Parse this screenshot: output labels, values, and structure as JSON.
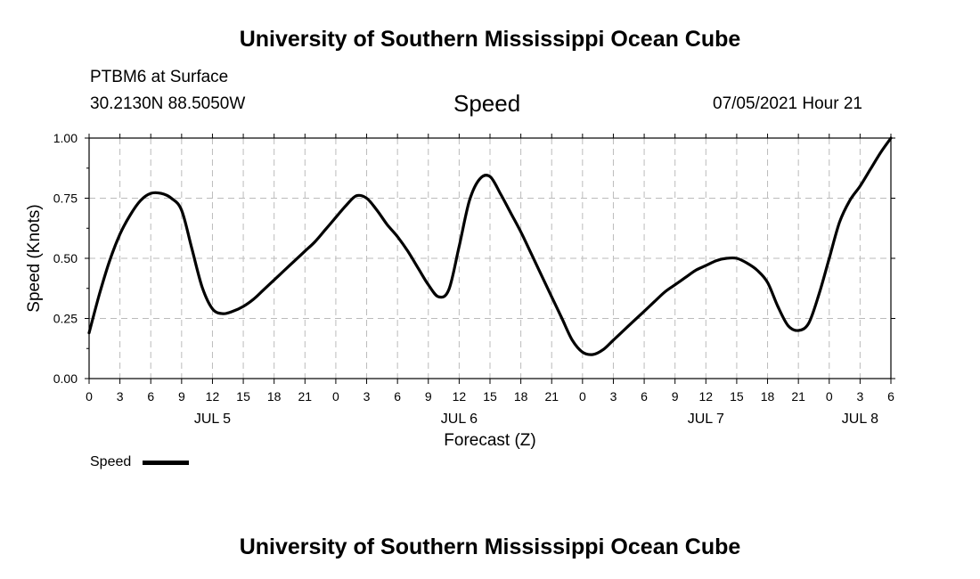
{
  "header": {
    "title": "University of Southern Mississippi Ocean Cube",
    "station": "PTBM6 at Surface",
    "coords": "30.2130N  88.5050W",
    "variable": "Speed",
    "datetime": "07/05/2021 Hour 21"
  },
  "footer": {
    "title": "University of Southern Mississippi Ocean Cube"
  },
  "legend": {
    "label": "Speed"
  },
  "chart_data": {
    "type": "line",
    "title": "Speed",
    "xlabel": "Forecast (Z)",
    "ylabel": "Speed (Knots)",
    "xunit": "hours since Jul 5 00Z",
    "xlim": [
      0,
      78
    ],
    "ylim": [
      0,
      1.0
    ],
    "yticks": [
      0,
      0.25,
      0.5,
      0.75,
      1.0
    ],
    "ytick_labels": [
      "0.00",
      "0.25",
      "0.50",
      "0.75",
      "1.00"
    ],
    "xticks": [
      0,
      3,
      6,
      9,
      12,
      15,
      18,
      21,
      24,
      27,
      30,
      33,
      36,
      39,
      42,
      45,
      48,
      51,
      54,
      57,
      60,
      63,
      66,
      69,
      72,
      75,
      78
    ],
    "xtick_labels": [
      "0",
      "3",
      "6",
      "9",
      "12",
      "15",
      "18",
      "21",
      "0",
      "3",
      "6",
      "9",
      "12",
      "15",
      "18",
      "21",
      "0",
      "3",
      "6",
      "9",
      "12",
      "15",
      "18",
      "21",
      "0",
      "3",
      "6"
    ],
    "date_labels": [
      {
        "x": 12,
        "label": "JUL 5"
      },
      {
        "x": 36,
        "label": "JUL 6"
      },
      {
        "x": 60,
        "label": "JUL 7"
      },
      {
        "x": 75,
        "label": "JUL 8"
      }
    ],
    "grid": true,
    "series": [
      {
        "name": "Speed",
        "color": "#000000",
        "x": [
          0,
          1,
          2,
          3,
          4,
          5,
          6,
          7,
          8,
          9,
          10,
          11,
          12,
          13,
          14,
          15,
          16,
          17,
          18,
          19,
          20,
          21,
          22,
          23,
          24,
          25,
          26,
          27,
          28,
          29,
          30,
          31,
          32,
          33,
          34,
          35,
          36,
          37,
          38,
          39,
          40,
          41,
          42,
          43,
          44,
          45,
          46,
          47,
          48,
          49,
          50,
          51,
          52,
          53,
          54,
          55,
          56,
          57,
          58,
          59,
          60,
          61,
          62,
          63,
          64,
          65,
          66,
          67,
          68,
          69,
          70,
          71,
          72,
          73,
          74,
          75,
          76,
          77,
          78
        ],
        "values": [
          0.19,
          0.35,
          0.49,
          0.6,
          0.68,
          0.74,
          0.77,
          0.77,
          0.75,
          0.7,
          0.54,
          0.38,
          0.29,
          0.27,
          0.28,
          0.3,
          0.33,
          0.37,
          0.41,
          0.45,
          0.49,
          0.53,
          0.57,
          0.62,
          0.67,
          0.72,
          0.76,
          0.75,
          0.7,
          0.64,
          0.59,
          0.53,
          0.46,
          0.39,
          0.34,
          0.37,
          0.55,
          0.74,
          0.83,
          0.84,
          0.77,
          0.69,
          0.61,
          0.52,
          0.43,
          0.34,
          0.25,
          0.16,
          0.11,
          0.1,
          0.12,
          0.16,
          0.2,
          0.24,
          0.28,
          0.32,
          0.36,
          0.39,
          0.42,
          0.45,
          0.47,
          0.49,
          0.5,
          0.5,
          0.48,
          0.45,
          0.4,
          0.3,
          0.22,
          0.2,
          0.23,
          0.35,
          0.5,
          0.65,
          0.74,
          0.8,
          0.87,
          0.94,
          1.0
        ]
      }
    ]
  }
}
